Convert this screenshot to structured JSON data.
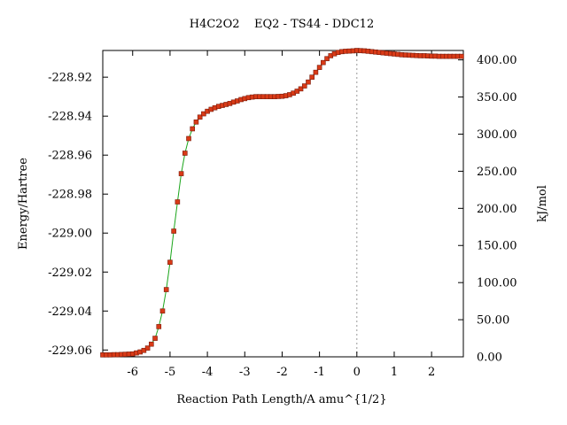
{
  "chart_data": {
    "type": "line",
    "title": "H4C2O2    EQ2 - TS44 - DDC12",
    "xlabel": "Reaction Path Length/A amu^{1/2}",
    "ylabel": "Energy/Hartree",
    "y2label": "kJ/mol",
    "xlim": [
      -6.8,
      2.85
    ],
    "ylim": [
      -229.0635,
      -228.9063
    ],
    "y2lim": [
      0.0,
      412.7
    ],
    "x_ticks": [
      -6,
      -5,
      -4,
      -3,
      -2,
      -1,
      0,
      1,
      2
    ],
    "x_tick_labels": [
      "-6",
      "-5",
      "-4",
      "-3",
      "-2",
      "-1",
      "0",
      "1",
      "2"
    ],
    "y_ticks": [
      -229.06,
      -229.04,
      -229.02,
      -229.0,
      -228.98,
      -228.96,
      -228.94,
      -228.92
    ],
    "y_tick_labels": [
      "-229.06",
      "-229.04",
      "-229.02",
      "-229.00",
      "-228.98",
      "-228.96",
      "-228.94",
      "-228.92"
    ],
    "y2_ticks": [
      0,
      50,
      100,
      150,
      200,
      250,
      300,
      350,
      400
    ],
    "y2_tick_labels": [
      "0.00",
      "50.00",
      "100.00",
      "150.00",
      "200.00",
      "250.00",
      "300.00",
      "350.00",
      "400.00"
    ],
    "ts_marker_x": 0,
    "grid": false,
    "colors": {
      "line": "#1aa51a",
      "marker": "#d93a17",
      "ts_line": "#999999"
    },
    "series": [
      {
        "x": [
          -6.8,
          -6.7,
          -6.6,
          -6.5,
          -6.4,
          -6.3,
          -6.2,
          -6.1,
          -6.0,
          -5.9,
          -5.8,
          -5.7,
          -5.6,
          -5.5,
          -5.4,
          -5.3,
          -5.2,
          -5.1,
          -5.0,
          -4.9,
          -4.8,
          -4.7,
          -4.6,
          -4.5,
          -4.4,
          -4.3,
          -4.2,
          -4.1,
          -4.0,
          -3.9,
          -3.8,
          -3.7,
          -3.6,
          -3.5,
          -3.4,
          -3.3,
          -3.2,
          -3.1,
          -3.0,
          -2.9,
          -2.8,
          -2.7,
          -2.6,
          -2.5,
          -2.4,
          -2.3,
          -2.2,
          -2.1,
          -2.0,
          -1.9,
          -1.8,
          -1.7,
          -1.6,
          -1.5,
          -1.4,
          -1.3,
          -1.2,
          -1.1,
          -1.0,
          -0.9,
          -0.8,
          -0.7,
          -0.6,
          -0.5,
          -0.4,
          -0.3,
          -0.2,
          -0.1,
          0.0,
          0.1,
          0.2,
          0.3,
          0.4,
          0.5,
          0.6,
          0.7,
          0.8,
          0.9,
          1.0,
          1.1,
          1.2,
          1.3,
          1.4,
          1.5,
          1.6,
          1.7,
          1.8,
          1.9,
          2.0,
          2.1,
          2.2,
          2.3,
          2.4,
          2.5,
          2.6,
          2.7,
          2.8
        ],
        "y": [
          -229.0625,
          -229.0625,
          -229.0625,
          -229.0624,
          -229.0624,
          -229.0623,
          -229.0622,
          -229.0621,
          -229.062,
          -229.0615,
          -229.061,
          -229.0602,
          -229.059,
          -229.057,
          -229.054,
          -229.048,
          -229.04,
          -229.029,
          -229.015,
          -228.999,
          -228.984,
          -228.9695,
          -228.959,
          -228.9515,
          -228.9465,
          -228.943,
          -228.9405,
          -228.9388,
          -228.9375,
          -228.9365,
          -228.9357,
          -228.935,
          -228.9345,
          -228.934,
          -228.9335,
          -228.9328,
          -228.9322,
          -228.9315,
          -228.931,
          -228.9305,
          -228.9302,
          -228.93,
          -228.93,
          -228.93,
          -228.93,
          -228.93,
          -228.93,
          -228.9299,
          -228.9298,
          -228.9295,
          -228.929,
          -228.9282,
          -228.9272,
          -228.926,
          -228.9245,
          -228.9225,
          -228.92,
          -228.9175,
          -228.915,
          -228.9125,
          -228.9105,
          -228.909,
          -228.908,
          -228.9073,
          -228.9069,
          -228.9067,
          -228.9066,
          -228.9065,
          -228.9063,
          -228.9064,
          -228.9065,
          -228.9067,
          -228.9069,
          -228.9071,
          -228.9073,
          -228.9075,
          -228.9077,
          -228.9079,
          -228.9081,
          -228.9083,
          -228.9085,
          -228.9086,
          -228.9087,
          -228.9088,
          -228.9089,
          -228.909,
          -228.909,
          -228.9091,
          -228.9092,
          -228.9092,
          -228.9093,
          -228.9093,
          -228.9093,
          -228.9093,
          -228.9093,
          -228.9093,
          -228.9093
        ]
      }
    ]
  }
}
